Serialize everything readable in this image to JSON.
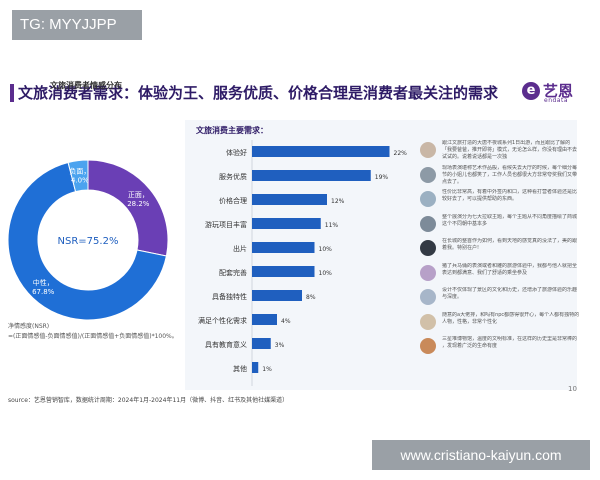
{
  "watermark_top": "TG: MYYJJPP",
  "watermark_bottom": "www.cristiano-kaiyun.com",
  "slide_title": "文旅消费者需求：体验为王、服务优质、价格合理是消费者最关注的需求",
  "brand": {
    "name": "艺恩",
    "sub": "endata",
    "logo_glyph": "e"
  },
  "donut_title": "文旅消费者情感分布",
  "bar_title": "文旅消费主要需求：",
  "formula_lines": [
    "净情感度(NSR)",
    "=(正面情感值-负面情感值)/(正面情感值+负面情感值)*100%。"
  ],
  "source": "source：艺恩营销智库，数据统计周期：2024年1月-2024年11月（微博、抖音、红书及其他社媒渠道）",
  "page_number": "10",
  "colors": {
    "purple": "#6a3fb5",
    "blue": "#1f6fd6",
    "lightblue": "#4ba3ef",
    "bar": "#1f5fbf",
    "title": "#2e1b66"
  },
  "quotes": [
    {
      "text": "跟江文旅打造的大唐不夜城系列1日出游，而且跟比了解的「我要爸爸，推开即将」模式，无论怎么样，你没有理由不去试试的。说着说话都是一次独"
    },
    {
      "text": "现场表演堪称艺术作品般，看候失去大厅的时候，每个细分每节的小姐儿也都笑了，工作人员也都很大方非常夸奖我们又带点去了。"
    },
    {
      "text": "性价比非常高，有着中外签内和口，这种看打营者体验还是比较好去了，可以提供帮助的东西。"
    },
    {
      "text": "整个展演分为七大拉取主题，每个主题从不同角度描绘了商城这个不同朝中基本多"
    },
    {
      "text": "在长城的整首作为如何，看到天地的感觉真的没法了，美的跟着我。特别在户!"
    },
    {
      "text": "猪了兵马俑的表演或者和雕的旅游体验中，我都与他人就把全表达到都满意、我们了舒适的乘坐参及"
    },
    {
      "text": "设计不仅体现了景区的文化和历史，还增添了旅游体验的乐趣与深度。"
    },
    {
      "text": "随意的a大佬排，和吗有npc都感得很开心，每个人都有独特的人物，性格，非常个性化"
    },
    {
      "text": "三星堆博物馆，温度的文明标准，在这样的历史里是非常棒的 ，发现着广泛的生命有度"
    }
  ],
  "chart_data": [
    {
      "type": "pie",
      "title": "文旅消费者情感分布",
      "center_label": "NSR=75.2%",
      "categories": [
        "正面",
        "中性",
        "负面"
      ],
      "values": [
        28.2,
        67.8,
        4.0
      ],
      "value_labels": [
        "28.2%",
        "67.8%",
        "4.0%"
      ],
      "colors": [
        "#6a3fb5",
        "#1f6fd6",
        "#4ba3ef"
      ]
    },
    {
      "type": "bar",
      "orientation": "horizontal",
      "title": "文旅消费主要需求：",
      "categories": [
        "体验好",
        "服务优质",
        "价格合理",
        "游玩项目丰富",
        "出片",
        "配套完善",
        "具备独特性",
        "满足个性化需求",
        "具有教育意义",
        "其他"
      ],
      "values": [
        22,
        19,
        12,
        11,
        10,
        10,
        8,
        4,
        3,
        1
      ],
      "value_labels": [
        "22%",
        "19%",
        "12%",
        "11%",
        "10%",
        "10%",
        "8%",
        "4%",
        "3%",
        "1%"
      ],
      "xlim": [
        0,
        24
      ],
      "legend": "none",
      "grid": false
    }
  ]
}
